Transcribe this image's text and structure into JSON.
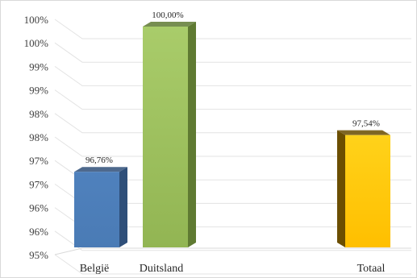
{
  "chart_data": {
    "type": "bar",
    "categories": [
      "België",
      "Duitsland",
      "",
      "Totaal"
    ],
    "values": [
      96.76,
      100.0,
      null,
      97.54
    ],
    "data_labels": [
      "96,76%",
      "100,00%",
      "",
      "97,54%"
    ],
    "colors": [
      "#4f81bd",
      "#9bbb59",
      "",
      "#ffc000"
    ],
    "ylim": [
      95,
      100
    ],
    "y_tick_labels": [
      "95%",
      "96%",
      "96%",
      "97%",
      "97%",
      "98%",
      "98%",
      "99%",
      "99%",
      "100%",
      "100%"
    ],
    "y_tick_values": [
      95,
      95.5,
      96,
      96.5,
      97,
      97.5,
      98,
      98.5,
      99,
      99.5,
      100
    ],
    "grid": true,
    "style": "3d-column",
    "title": "",
    "xlabel": "",
    "ylabel": ""
  }
}
